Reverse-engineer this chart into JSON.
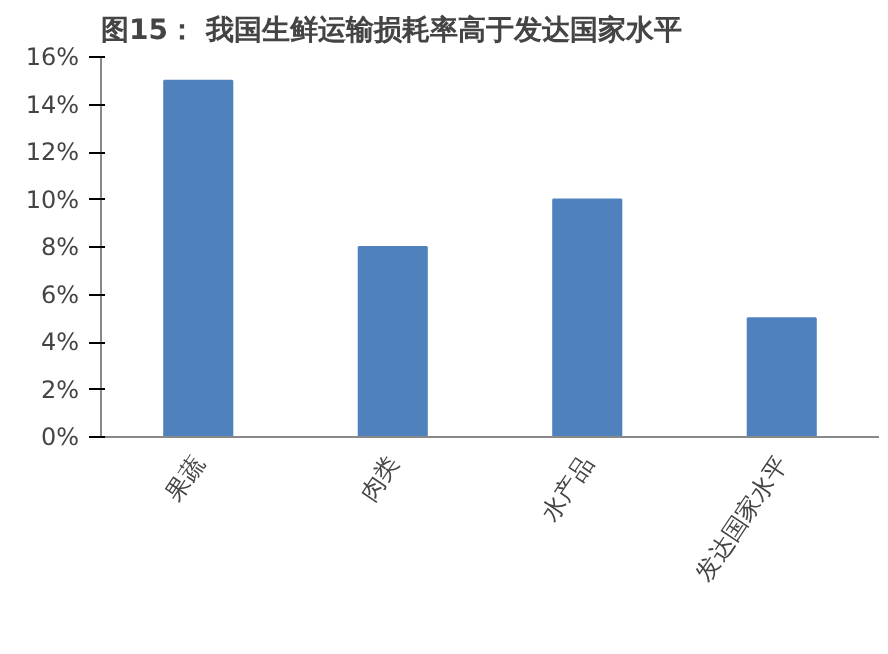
{
  "chart_data": {
    "type": "bar",
    "title": "图15：  我国生鲜运输损耗率高于发达国家水平",
    "categories": [
      "果蔬",
      "肉类",
      "水产品",
      "发达国家水平"
    ],
    "values": [
      15,
      8,
      10,
      5
    ],
    "color": "#4f81bd",
    "ylim": [
      0,
      16
    ],
    "yticks": [
      {
        "value": 0,
        "label": "0%"
      },
      {
        "value": 2,
        "label": "2%"
      },
      {
        "value": 4,
        "label": "4%"
      },
      {
        "value": 6,
        "label": "6%"
      },
      {
        "value": 8,
        "label": "8%"
      },
      {
        "value": 10,
        "label": "10%"
      },
      {
        "value": 12,
        "label": "12%"
      },
      {
        "value": 14,
        "label": "14%"
      },
      {
        "value": 16,
        "label": "16%"
      }
    ],
    "grid": false
  }
}
